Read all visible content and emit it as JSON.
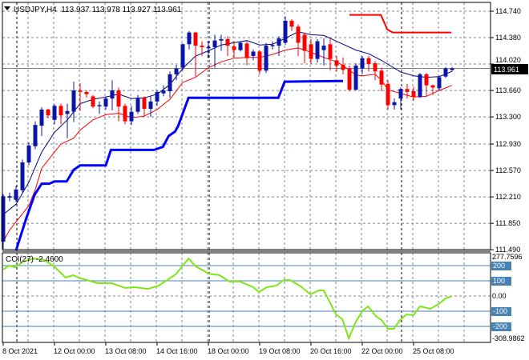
{
  "window": {
    "symbol_header": "USDJPY,H4  113.937 113.978 113.927 113.961",
    "indicator_header": "CCI(27) -2.4600",
    "current_price_label": "113.961"
  },
  "colors": {
    "bull": "#0a14a8",
    "bear": "#ff0000",
    "ma_fast": "#000080",
    "ma_slow": "#ff0000",
    "stop_blue": "#0000ff",
    "stop_red": "#ff0000",
    "cci": "#7fe617",
    "cci_level": "#4682b4",
    "grid": "#778899"
  },
  "chart_data": [
    {
      "type": "candlestick",
      "title": "USDJPY,H4",
      "ylim": [
        111.49,
        114.74
      ],
      "y_ticks": [
        "114.740",
        "114.380",
        "114.020",
        "113.660",
        "113.300",
        "112.930",
        "112.570",
        "112.210",
        "111.850",
        "111.490"
      ],
      "x_ticks": [
        {
          "label": "8 Oct 2021",
          "bar": 0
        },
        {
          "label": "12 Oct 00:00",
          "bar": 8
        },
        {
          "label": "13 Oct 08:00",
          "bar": 16
        },
        {
          "label": "14 Oct 16:00",
          "bar": 24
        },
        {
          "label": "18 Oct 00:00",
          "bar": 32
        },
        {
          "label": "19 Oct 08:00",
          "bar": 40
        },
        {
          "label": "20 Oct 16:00",
          "bar": 48
        },
        {
          "label": "22 Oct 00:00",
          "bar": 56
        },
        {
          "label": "25 Oct 08:00",
          "bar": 64
        }
      ],
      "period_separators_bars": [
        2,
        32,
        62
      ],
      "current_price": 113.961,
      "ohlc": [
        [
          111.6,
          112.25,
          111.5,
          112.22
        ],
        [
          112.2,
          112.27,
          112.15,
          112.22
        ],
        [
          112.17,
          112.36,
          112.14,
          112.31
        ],
        [
          112.3,
          112.72,
          112.27,
          112.68
        ],
        [
          112.68,
          112.95,
          112.64,
          112.91
        ],
        [
          112.9,
          113.24,
          112.86,
          113.19
        ],
        [
          113.18,
          113.43,
          113.04,
          113.4
        ],
        [
          113.4,
          113.41,
          113.28,
          113.32
        ],
        [
          113.26,
          113.47,
          113.2,
          113.45
        ],
        [
          113.45,
          113.48,
          113.2,
          113.32
        ],
        [
          113.34,
          113.48,
          113.01,
          113.38
        ],
        [
          113.37,
          113.78,
          113.23,
          113.66
        ],
        [
          113.66,
          113.76,
          113.38,
          113.64
        ],
        [
          113.64,
          113.66,
          113.56,
          113.61
        ],
        [
          113.58,
          113.6,
          113.42,
          113.44
        ],
        [
          113.45,
          113.51,
          113.34,
          113.46
        ],
        [
          113.44,
          113.58,
          113.4,
          113.55
        ],
        [
          113.55,
          113.8,
          113.39,
          113.66
        ],
        [
          113.66,
          113.7,
          113.24,
          113.44
        ],
        [
          113.45,
          113.48,
          113.2,
          113.24
        ],
        [
          113.24,
          113.45,
          113.19,
          113.37
        ],
        [
          113.37,
          113.6,
          113.34,
          113.56
        ],
        [
          113.56,
          113.58,
          113.3,
          113.41
        ],
        [
          113.41,
          113.58,
          113.3,
          113.51
        ],
        [
          113.51,
          113.66,
          113.45,
          113.64
        ],
        [
          113.62,
          113.73,
          113.58,
          113.66
        ],
        [
          113.65,
          113.92,
          113.56,
          113.88
        ],
        [
          113.88,
          114.01,
          113.8,
          113.96
        ],
        [
          113.97,
          114.3,
          113.93,
          114.29
        ],
        [
          114.29,
          114.47,
          114.22,
          114.45
        ],
        [
          114.45,
          114.46,
          113.85,
          114.27
        ],
        [
          114.27,
          114.33,
          114.13,
          114.25
        ],
        [
          114.24,
          114.33,
          114.1,
          114.25
        ],
        [
          114.25,
          114.42,
          113.97,
          114.34
        ],
        [
          114.34,
          114.42,
          114.2,
          114.36
        ],
        [
          114.36,
          114.4,
          114.13,
          114.27
        ],
        [
          114.26,
          114.33,
          114.11,
          114.21
        ],
        [
          114.21,
          114.33,
          114.19,
          114.31
        ],
        [
          114.3,
          114.33,
          114.0,
          114.1
        ],
        [
          114.13,
          114.22,
          114.07,
          114.19
        ],
        [
          114.19,
          114.21,
          113.88,
          113.93
        ],
        [
          113.93,
          114.31,
          113.9,
          114.27
        ],
        [
          114.27,
          114.33,
          114.22,
          114.28
        ],
        [
          114.27,
          114.4,
          114.13,
          114.37
        ],
        [
          114.31,
          114.67,
          114.28,
          114.61
        ],
        [
          114.61,
          114.63,
          114.47,
          114.53
        ],
        [
          114.53,
          114.56,
          114.13,
          114.31
        ],
        [
          114.42,
          114.45,
          114.03,
          114.2
        ],
        [
          114.29,
          114.36,
          114.02,
          114.09
        ],
        [
          114.09,
          114.36,
          114.04,
          114.33
        ],
        [
          114.21,
          114.37,
          114.0,
          114.27
        ],
        [
          114.29,
          114.36,
          113.93,
          114.09
        ],
        [
          114.07,
          114.13,
          113.92,
          114.0
        ],
        [
          114.01,
          114.11,
          113.88,
          113.94
        ],
        [
          113.96,
          114.0,
          113.65,
          113.67
        ],
        [
          113.67,
          114.03,
          113.66,
          114.0
        ],
        [
          113.96,
          114.13,
          113.88,
          114.1
        ],
        [
          114.1,
          114.13,
          113.92,
          114.02
        ],
        [
          114.03,
          114.06,
          113.8,
          113.92
        ],
        [
          113.93,
          113.97,
          113.65,
          113.74
        ],
        [
          113.75,
          113.8,
          113.4,
          113.46
        ],
        [
          113.46,
          113.55,
          113.4,
          113.5
        ],
        [
          113.55,
          113.7,
          113.4,
          113.68
        ],
        [
          113.68,
          113.75,
          113.55,
          113.64
        ],
        [
          113.65,
          113.71,
          113.52,
          113.57
        ],
        [
          113.57,
          113.9,
          113.56,
          113.88
        ],
        [
          113.88,
          113.9,
          113.58,
          113.73
        ],
        [
          113.73,
          113.74,
          113.6,
          113.7
        ],
        [
          113.69,
          113.86,
          113.66,
          113.84
        ],
        [
          113.85,
          113.98,
          113.83,
          113.96
        ],
        [
          113.937,
          113.978,
          113.927,
          113.961
        ]
      ],
      "series": [
        {
          "name": "ma_fast",
          "type": "line",
          "points": [
            [
              0,
              111.97
            ],
            [
              2,
              112.11
            ],
            [
              4,
              112.41
            ],
            [
              6,
              112.82
            ],
            [
              8,
              113.09
            ],
            [
              10,
              113.26
            ],
            [
              12,
              113.48
            ],
            [
              14,
              113.54
            ],
            [
              16,
              113.57
            ],
            [
              18,
              113.61
            ],
            [
              20,
              113.55
            ],
            [
              22,
              113.56
            ],
            [
              24,
              113.61
            ],
            [
              26,
              113.74
            ],
            [
              28,
              113.96
            ],
            [
              30,
              114.13
            ],
            [
              32,
              114.2
            ],
            [
              34,
              114.28
            ],
            [
              36,
              114.31
            ],
            [
              38,
              114.34
            ],
            [
              40,
              114.28
            ],
            [
              42,
              114.29
            ],
            [
              44,
              114.37
            ],
            [
              46,
              114.46
            ],
            [
              48,
              114.42
            ],
            [
              50,
              114.41
            ],
            [
              53,
              114.29
            ],
            [
              55,
              114.21
            ],
            [
              57,
              114.16
            ],
            [
              59,
              114.07
            ],
            [
              62,
              113.91
            ],
            [
              64,
              113.86
            ],
            [
              66,
              113.84
            ],
            [
              68,
              113.85
            ],
            [
              70,
              113.92
            ]
          ]
        },
        {
          "name": "ma_slow",
          "type": "line",
          "points": [
            [
              0,
              111.6
            ],
            [
              1,
              111.76
            ],
            [
              2,
              111.87
            ],
            [
              4,
              112.09
            ],
            [
              5,
              112.31
            ],
            [
              6,
              112.6
            ],
            [
              8,
              112.82
            ],
            [
              9,
              112.93
            ],
            [
              11,
              113.01
            ],
            [
              12,
              113.12
            ],
            [
              14,
              113.26
            ],
            [
              16,
              113.33
            ],
            [
              18,
              113.35
            ],
            [
              20,
              113.29
            ],
            [
              22,
              113.31
            ],
            [
              24,
              113.4
            ],
            [
              26,
              113.54
            ],
            [
              28,
              113.77
            ],
            [
              30,
              113.84
            ],
            [
              32,
              113.97
            ],
            [
              34,
              114.05
            ],
            [
              36,
              114.1
            ],
            [
              38,
              114.11
            ],
            [
              40,
              114.11
            ],
            [
              42,
              114.15
            ],
            [
              44,
              114.21
            ],
            [
              46,
              114.24
            ],
            [
              48,
              114.18
            ],
            [
              50,
              114.11
            ],
            [
              52,
              114.05
            ],
            [
              53,
              114.0
            ],
            [
              55,
              113.87
            ],
            [
              56,
              113.86
            ],
            [
              58,
              113.88
            ],
            [
              59,
              113.8
            ],
            [
              60,
              113.67
            ],
            [
              62,
              113.62
            ],
            [
              64,
              113.57
            ],
            [
              66,
              113.58
            ],
            [
              68,
              113.66
            ],
            [
              70,
              113.73
            ]
          ]
        },
        {
          "name": "stop_blue",
          "type": "line",
          "points": [
            [
              2,
              111.48
            ],
            [
              3.6,
              111.92
            ],
            [
              4.9,
              112.24
            ],
            [
              6,
              112.39
            ],
            [
              7.2,
              112.39
            ],
            [
              8,
              112.42
            ],
            [
              9.9,
              112.42
            ],
            [
              11,
              112.58
            ],
            [
              12,
              112.64
            ],
            [
              16,
              112.64
            ],
            [
              16.8,
              112.85
            ],
            [
              23.5,
              112.85
            ],
            [
              24.9,
              112.89
            ],
            [
              25.8,
              113.04
            ],
            [
              26.8,
              113.1
            ],
            [
              27.3,
              113.18
            ],
            [
              28.9,
              113.56
            ],
            [
              42.9,
              113.56
            ],
            [
              43.9,
              113.78
            ],
            [
              53,
              113.79
            ]
          ]
        },
        {
          "name": "stop_red",
          "type": "line",
          "points": [
            [
              54,
              114.69
            ],
            [
              58.9,
              114.69
            ],
            [
              59.9,
              114.49
            ],
            [
              60.75,
              114.45
            ],
            [
              69.9,
              114.45
            ]
          ]
        }
      ]
    },
    {
      "type": "line",
      "title": "CCI(27)",
      "ylim": [
        -308.9862,
        277.7596
      ],
      "y_ticks": [
        "277.7596",
        "200",
        "100",
        "0.00",
        "-100",
        "-200",
        "-308.9862"
      ],
      "levels": [
        200,
        100,
        -100,
        -200
      ],
      "zero_level": 0,
      "last_value": -2.46,
      "points": [
        [
          0,
          174
        ],
        [
          0.9,
          200
        ],
        [
          1.9,
          189
        ],
        [
          3.1,
          226
        ],
        [
          4.75,
          247
        ],
        [
          6.4,
          237
        ],
        [
          7.9,
          195
        ],
        [
          9.75,
          121
        ],
        [
          10.9,
          137
        ],
        [
          12.1,
          116
        ],
        [
          14.75,
          84
        ],
        [
          16.9,
          84
        ],
        [
          19,
          53
        ],
        [
          20.5,
          58
        ],
        [
          22.6,
          47
        ],
        [
          24.25,
          68
        ],
        [
          26.9,
          142
        ],
        [
          28.9,
          247
        ],
        [
          30,
          195
        ],
        [
          32.1,
          147
        ],
        [
          33.75,
          137
        ],
        [
          35.25,
          95
        ],
        [
          36.9,
          95
        ],
        [
          39,
          58
        ],
        [
          39.9,
          26
        ],
        [
          41.1,
          58
        ],
        [
          42.6,
          68
        ],
        [
          43.75,
          105
        ],
        [
          44.75,
          105
        ],
        [
          46.4,
          63
        ],
        [
          47.9,
          11
        ],
        [
          49.25,
          37
        ],
        [
          50,
          37
        ],
        [
          51.9,
          -121
        ],
        [
          52.9,
          -153
        ],
        [
          53.9,
          -279
        ],
        [
          55,
          -168
        ],
        [
          56.1,
          -95
        ],
        [
          56.9,
          -68
        ],
        [
          58.1,
          -132
        ],
        [
          59,
          -158
        ],
        [
          60,
          -216
        ],
        [
          60.9,
          -216
        ],
        [
          61.9,
          -158
        ],
        [
          62.9,
          -121
        ],
        [
          64,
          -126
        ],
        [
          65,
          -68
        ],
        [
          66.6,
          -84
        ],
        [
          67.9,
          -53
        ],
        [
          69,
          -16
        ],
        [
          69.9,
          -2.46
        ]
      ]
    }
  ]
}
